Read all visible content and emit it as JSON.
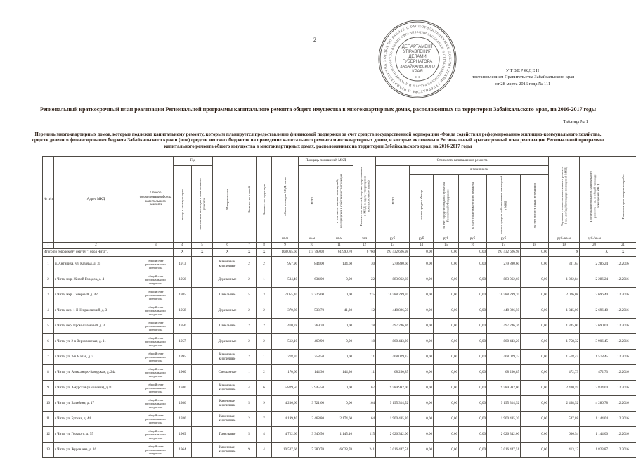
{
  "page": {
    "number": "2"
  },
  "stamp": {
    "outer_ring": "ОТДЕЛ ПО РАБОТЕ С РАСПОРЯДИТЕЛЬНЫМИ ДОКУМЕНТАМИ ГУБЕРНАТОРА И ПРАВИТЕЛЬСТВА ЗАБАЙКАЛЬСКОГО КРАЯ",
    "inner_ring": "УПРАВЛЕНИЕ ОРГАНИЗАЦИИ ЗАСЕДАНИЙ И ОРГАНИЗАЦИОННОЙ РАБОТЫ И ДОКУМЕНТООБОРОТА",
    "center_lines": [
      "ДЕПАРТАМЕНТ",
      "УПРАВЛЕНИЯ",
      "ДЕЛАМИ",
      "ГУБЕРНАТОРА",
      "ЗАБАЙКАЛЬСКОГО",
      "КРАЯ"
    ],
    "ink_color": "#3f3c3a"
  },
  "approval": {
    "line1": "УТВЕРЖДЕН",
    "line2": "постановлением Правительства Забайкальского края",
    "line3": "от 28 марта  2016 года № 111"
  },
  "title": "Региональный краткосрочный план реализации Региональной программы капитального ремонта общего имущества в многоквартирных домах, расположенных на территории Забайкальского края, на 2016-2017 годы",
  "table_label": "Таблица № 1",
  "subtitle": "Перечень многоквартирных домов, которые подлежат капитальному ремонту, которым планируется предоставление финансовой поддержки за счет средств государственной корпорации -Фонда содействия реформированию жилищно-коммунального хозяйства, средств долевого финансирования бюджета Забайкальского края и (или) средств местных бюджетов на проведение капитального ремонта многоквартирных домов, и которые включены в Региональный краткосрочный план реализации Региональной программы капитального ремонта общего имущества в многоквартирных домах, расположенных на территории Забайкальского края, на 2016-2017 годы",
  "table": {
    "groups": {
      "year": "Год",
      "premises": "Площадь помещений МКД",
      "cost": "Стоимость капитального ремонта",
      "including": "в том числе"
    },
    "columns": [
      "№ п/п",
      "Адрес МКД",
      "Способ формирования фонда капитального ремонта",
      "ввода в эксплуатацию",
      "завершения последнего капитального ремонта",
      "Материал стен",
      "Количество этажей",
      "Количество подъездов",
      "общая площадь МКД, всего",
      "всего",
      "в том числе жилых помещений, находящихся в собственности граждан",
      "Количество жителей, зарегистрированных в МКД на (дату утверждения краткосрочного плана)",
      "всего",
      "за счет средств Фонда",
      "за счет средств бюджета субъекта Российской Федерации",
      "за счет средств местного бюджета",
      "за счет средств собственников помещений в МКД",
      "за счет средств иных источников",
      "Удельная стоимость капитального ремонта 1 кв. м общей площади помещений МКД",
      "Предельная стоимость капитального ремонта 1 кв. м общей площади помещений МКД",
      "Плановая дата завершения работ"
    ],
    "units": [
      "кв.м",
      "кв.м",
      "кв.м",
      "чел",
      "руб",
      "руб",
      "руб",
      "руб",
      "руб",
      "",
      "руб./кв.м",
      "руб./кв.м",
      ""
    ],
    "numbers": [
      "1",
      "2",
      "3",
      "4",
      "5",
      "6",
      "7",
      "8",
      "9",
      "10",
      "11",
      "12",
      "13",
      "14",
      "15",
      "16",
      "17",
      "18",
      "19",
      "20",
      "21"
    ],
    "total_row": {
      "label": "Итого по городскому округу \"Город Чита\".",
      "year": "X",
      "repair_year": "X",
      "material": "X",
      "floors": "X",
      "entrances": "X",
      "area_total": "108 065,60",
      "area_premises": "115 799,08",
      "area_owned": "61 990,70",
      "residents": "6 760",
      "cost_total": "193 432 626,98",
      "fund_share": "0,00",
      "region_share": "0,00",
      "local_share": "0,00",
      "owners_share": "193 432 626,98",
      "other_share": "0,00",
      "unit_cost": "X",
      "max_cost": "X",
      "deadline": "X"
    },
    "rows": [
      {
        "n": "1",
        "address": "п. Антипиха, ул. Казачья, д. 35",
        "fund": "общий счет регионального оператора",
        "year": "1913",
        "repair_year": "",
        "material": "Каменные, кирпичные",
        "floors": "2",
        "entrances": "2",
        "area_total": "957,90",
        "area_premises": "844,00",
        "area_owned": "134,60",
        "residents": "30",
        "cost_total": "279 890,60",
        "fund_share": "0,00",
        "region_share": "0,00",
        "local_share": "0,00",
        "owners_share": "279 890,60",
        "other_share": "0,00",
        "unit_cost": "331,63",
        "max_cost": "2 286,24",
        "deadline": "12.2016"
      },
      {
        "n": "2",
        "address": "г Чита, мкр. Жилой Городок, д. 4",
        "fund": "общий счет регионального оператора",
        "year": "1956",
        "repair_year": "",
        "material": "Деревянные",
        "floors": "2",
        "entrances": "1",
        "area_total": "534,40",
        "area_premises": "634,00",
        "area_owned": "0,00",
        "residents": "22",
        "cost_total": "883 062,60",
        "fund_share": "0,00",
        "region_share": "0,00",
        "local_share": "0,00",
        "owners_share": "883 062,60",
        "other_share": "0,00",
        "unit_cost": "1 392,84",
        "max_cost": "2 286,24",
        "deadline": "12.2016"
      },
      {
        "n": "3",
        "address": "г Чита, мкр. Северный, д. 42",
        "fund": "общий счет регионального оператора",
        "year": "1985",
        "repair_year": "",
        "material": "Панельные",
        "floors": "5",
        "entrances": "3",
        "area_total": "7 055,10",
        "area_premises": "5 226,00",
        "area_owned": "0,00",
        "residents": "215",
        "cost_total": "10 588 299,70",
        "fund_share": "0,00",
        "region_share": "0,00",
        "local_share": "0,00",
        "owners_share": "10 588 299,70",
        "other_share": "0,00",
        "unit_cost": "2 026,08",
        "max_cost": "2 696,40",
        "deadline": "12.2016"
      },
      {
        "n": "4",
        "address": "г Чита, пер. 1-й Некрасовский, д. 3",
        "fund": "общий счет регионального оператора",
        "year": "1958",
        "repair_year": "",
        "material": "Деревянные",
        "floors": "2",
        "entrances": "2",
        "area_total": "370,80",
        "area_premises": "533,70",
        "area_owned": "41,30",
        "residents": "12",
        "cost_total": "448 826,50",
        "fund_share": "0,00",
        "region_share": "0,00",
        "local_share": "0,00",
        "owners_share": "448 826,50",
        "other_share": "0,00",
        "unit_cost": "1 345,00",
        "max_cost": "2 696,40",
        "deadline": "12.2016"
      },
      {
        "n": "5",
        "address": "г Чита, пер. Промышленный, д. 3",
        "fund": "общий счет регионального оператора",
        "year": "1956",
        "repair_year": "",
        "material": "Панельные",
        "floors": "2",
        "entrances": "2",
        "area_total": "410,78",
        "area_premises": "369,70",
        "area_owned": "0,00",
        "residents": "18",
        "cost_total": "497 246,36",
        "fund_share": "0,00",
        "region_share": "0,00",
        "local_share": "0,00",
        "owners_share": "497 246,36",
        "other_share": "0,00",
        "unit_cost": "1 345,00",
        "max_cost": "2 690,00",
        "deadline": "12.2016"
      },
      {
        "n": "6",
        "address": "г Чита, ул. 2-я Верхоленская, д. 11",
        "fund": "общий счет регионального оператора",
        "year": "1957",
        "repair_year": "",
        "material": "Деревянные",
        "floors": "2",
        "entrances": "2",
        "area_total": "512,10",
        "area_premises": "460,90",
        "area_owned": "0,00",
        "residents": "18",
        "cost_total": "860 443,20",
        "fund_share": "0,00",
        "region_share": "0,00",
        "local_share": "0,00",
        "owners_share": "860 443,20",
        "other_share": "0,00",
        "unit_cost": "1 758,32",
        "max_cost": "3 906,45",
        "deadline": "12.2016"
      },
      {
        "n": "7",
        "address": "г Чита, ул. 3-я Малая, д. 5",
        "fund": "общий счет регионального оператора",
        "year": "1995",
        "repair_year": "",
        "material": "Каменные, кирпичные",
        "floors": "2",
        "entrances": "1",
        "area_total": "278,70",
        "area_premises": "258,50",
        "area_owned": "0,00",
        "residents": "11",
        "cost_total": "408 029,32",
        "fund_share": "0,00",
        "region_share": "0,00",
        "local_share": "0,00",
        "owners_share": "408 029,32",
        "other_share": "0,00",
        "unit_cost": "1 578,45",
        "max_cost": "1 578,45",
        "deadline": "12.2016"
      },
      {
        "n": "8",
        "address": "г Чита, ул. Александро-Заводская, д. 24а",
        "fund": "общий счет регионального оператора",
        "year": "1960",
        "repair_year": "",
        "material": "Смешанные",
        "floors": "1",
        "entrances": "2",
        "area_total": "170,60",
        "area_premises": "144,30",
        "area_owned": "144,30",
        "residents": "11",
        "cost_total": "68 260,85",
        "fund_share": "0,00",
        "region_share": "0,00",
        "local_share": "0,00",
        "owners_share": "68 260,85",
        "other_share": "0,00",
        "unit_cost": "472,73",
        "max_cost": "472,73",
        "deadline": "12.2016"
      },
      {
        "n": "9",
        "address": "г Чита, ул. Амурская (Калинина), д. 82",
        "fund": "общий счет регионального оператора",
        "year": "1940",
        "repair_year": "",
        "material": "Каменные, кирпичные",
        "floors": "4",
        "entrances": "6",
        "area_total": "5 829,50",
        "area_premises": "3 945,50",
        "area_owned": "0,00",
        "residents": "67",
        "cost_total": "9 589 992,00",
        "fund_share": "0,00",
        "region_share": "0,00",
        "local_share": "0,00",
        "owners_share": "9 589 992,00",
        "other_share": "0,00",
        "unit_cost": "2 430,59",
        "max_cost": "3 834,00",
        "deadline": "12.2016"
      },
      {
        "n": "10",
        "address": "г Чита, ул. Балябина, д. 17",
        "fund": "общий счет регионального оператора",
        "year": "1986",
        "repair_year": "",
        "material": "Каменные, кирпичные",
        "floors": "5",
        "entrances": "9",
        "area_total": "4 236,60",
        "area_premises": "3 721,60",
        "area_owned": "0,00",
        "residents": "164",
        "cost_total": "9 195 314,52",
        "fund_share": "0,00",
        "region_share": "0,00",
        "local_share": "0,00",
        "owners_share": "9 195 314,52",
        "other_share": "0,00",
        "unit_cost": "2 468,52",
        "max_cost": "4 286,78",
        "deadline": "12.2016"
      },
      {
        "n": "11",
        "address": "г Чита, ул. Бутина, д. 44",
        "fund": "общий счет регионального оператора",
        "year": "1936",
        "repair_year": "",
        "material": "Каменные, кирпичные",
        "floors": "2",
        "entrances": "7",
        "area_total": "4 199,40",
        "area_premises": "3 468,80",
        "area_owned": "2 174,60",
        "residents": "64",
        "cost_total": "1 900 485,20",
        "fund_share": "0,00",
        "region_share": "0,00",
        "local_share": "0,00",
        "owners_share": "1 900 485,20",
        "other_share": "0,00",
        "unit_cost": "547,88",
        "max_cost": "1 144,04",
        "deadline": "12.2016"
      },
      {
        "n": "12",
        "address": "г Чита, ул. Горького, д. 55",
        "fund": "общий счет регионального оператора",
        "year": "1969",
        "repair_year": "",
        "material": "Панельные",
        "floors": "5",
        "entrances": "4",
        "area_total": "4 722,60",
        "area_premises": "3 340,50",
        "area_owned": "1 145,10",
        "residents": "115",
        "cost_total": "2 026 342,00",
        "fund_share": "0,00",
        "region_share": "0,00",
        "local_share": "0,00",
        "owners_share": "2 026 342,00",
        "other_share": "0,00",
        "unit_cost": "606,54",
        "max_cost": "1 144,00",
        "deadline": "12.2016"
      },
      {
        "n": "13",
        "address": "г Чита, ул. Журавлева, д. 16",
        "fund": "общий счет регионального оператора",
        "year": "1964",
        "repair_year": "",
        "material": "Каменные, кирпичные",
        "floors": "9",
        "entrances": "4",
        "area_total": "10 537,66",
        "area_premises": "7 380,70",
        "area_owned": "6 028,70",
        "residents": "241",
        "cost_total": "3 016 447,51",
        "fund_share": "0,00",
        "region_share": "0,00",
        "local_share": "0,00",
        "owners_share": "3 016 447,51",
        "other_share": "0,00",
        "unit_cost": "413,13",
        "max_cost": "1 823,87",
        "deadline": "12.2016"
      }
    ]
  }
}
